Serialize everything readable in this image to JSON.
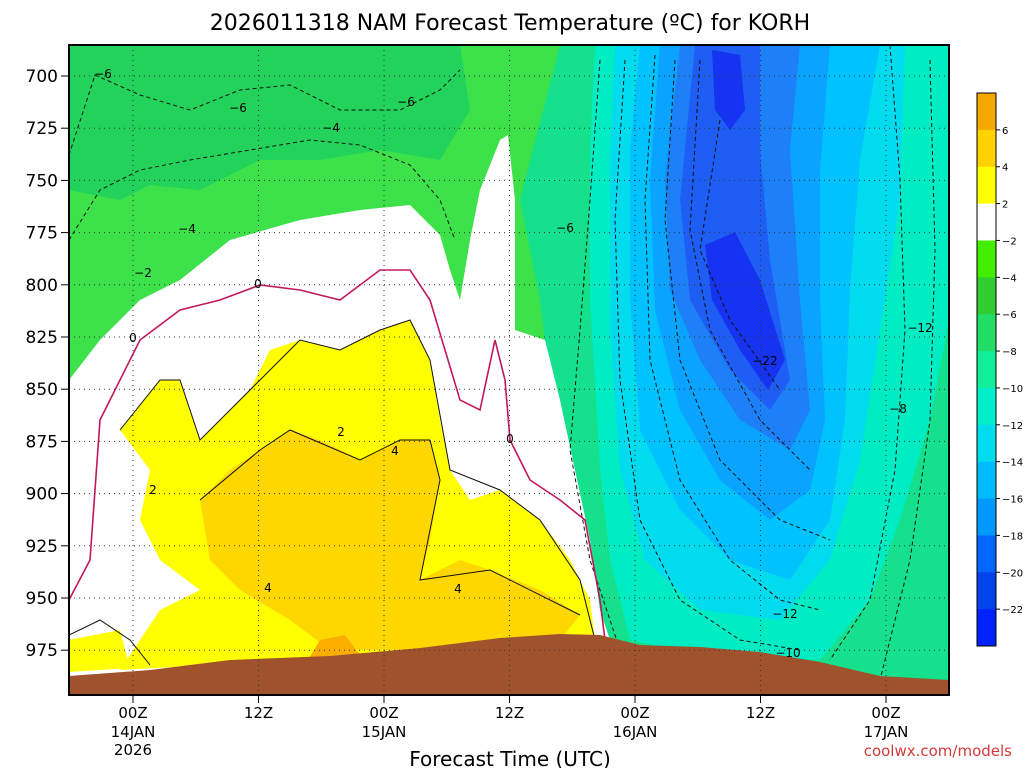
{
  "chart_data": {
    "type": "heatmap",
    "title": "2026011318 NAM Forecast Temperature (ºC) for KORH",
    "xlabel": "Forecast Time (UTC)",
    "ylabel": "",
    "y_ticks": [
      "700",
      "725",
      "750",
      "775",
      "800",
      "825",
      "850",
      "875",
      "900",
      "925",
      "950",
      "975"
    ],
    "x_ticks": [
      {
        "hour": "00Z",
        "date": "14JAN",
        "year": "2026"
      },
      {
        "hour": "12Z",
        "date": "",
        "year": ""
      },
      {
        "hour": "00Z",
        "date": "15JAN",
        "year": ""
      },
      {
        "hour": "12Z",
        "date": "",
        "year": ""
      },
      {
        "hour": "00Z",
        "date": "16JAN",
        "year": ""
      },
      {
        "hour": "12Z",
        "date": "",
        "year": ""
      },
      {
        "hour": "00Z",
        "date": "17JAN",
        "year": ""
      }
    ],
    "colorbar": {
      "labels": [
        "6",
        "4",
        "2",
        "−2",
        "−4",
        "−6",
        "−8",
        "−10",
        "−12",
        "−14",
        "−16",
        "−18",
        "−20",
        "−22"
      ],
      "colors": [
        "#f7a800",
        "#ffd200",
        "#ffff00",
        "#ffffff",
        "#44ee00",
        "#32cd32",
        "#22dd66",
        "#11ee99",
        "#00eecc",
        "#00ddee",
        "#00bbff",
        "#0099ff",
        "#0066ff",
        "#0044ee",
        "#0022ff"
      ]
    },
    "contour_labels": [
      "−6",
      "−6",
      "−6",
      "−4",
      "−4",
      "−6",
      "−2",
      "0",
      "0",
      "0",
      "2",
      "2",
      "4",
      "4",
      "4",
      "−22",
      "−12",
      "−8",
      "−12",
      "−10"
    ],
    "terrain_color": "#a0522d",
    "credit": "coolwx.com/models"
  }
}
